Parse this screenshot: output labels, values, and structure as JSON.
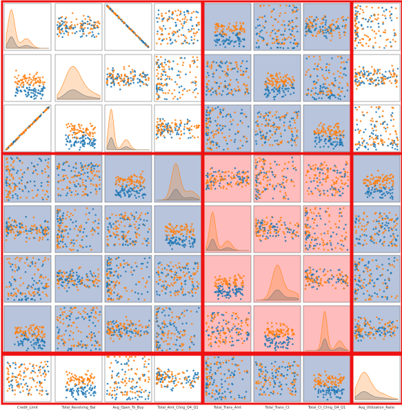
{
  "chart_data": {
    "type": "scatter",
    "kind": "pairplot",
    "variables": [
      "Credit_Limit",
      "Total_Revolving_Bal",
      "Avg_Open_To_Buy",
      "Total_Amt_Chng_Q4_Q1",
      "Total_Trans_Amt",
      "Total_Trans_Ct",
      "Total_Ct_Chng_Q4_Q1",
      "Avg_Utilization_Ratio"
    ],
    "diagonal": "kde",
    "off_diagonal": "scatter",
    "hue_colors": [
      "#1f77b4",
      "#ff7f0e"
    ],
    "highlight_colors": {
      "frame": "#ee1111",
      "blue_block": "#b7c4dc",
      "red_block": "#ffbcbc"
    },
    "highlight_blocks": [
      {
        "rows": [
          0,
          2
        ],
        "cols": [
          0,
          3
        ],
        "fill": "none"
      },
      {
        "rows": [
          0,
          2
        ],
        "cols": [
          4,
          6
        ],
        "fill": "blue_block"
      },
      {
        "rows": [
          0,
          2
        ],
        "cols": [
          7,
          7
        ],
        "fill": "none"
      },
      {
        "rows": [
          3,
          6
        ],
        "cols": [
          0,
          3
        ],
        "fill": "blue_block"
      },
      {
        "rows": [
          3,
          6
        ],
        "cols": [
          4,
          6
        ],
        "fill": "red_block"
      },
      {
        "rows": [
          3,
          6
        ],
        "cols": [
          7,
          7
        ],
        "fill": "blue_block"
      },
      {
        "rows": [
          7,
          7
        ],
        "cols": [
          0,
          3
        ],
        "fill": "none"
      },
      {
        "rows": [
          7,
          7
        ],
        "cols": [
          4,
          6
        ],
        "fill": "blue_block"
      },
      {
        "rows": [
          7,
          7
        ],
        "cols": [
          7,
          7
        ],
        "fill": "none"
      }
    ]
  }
}
